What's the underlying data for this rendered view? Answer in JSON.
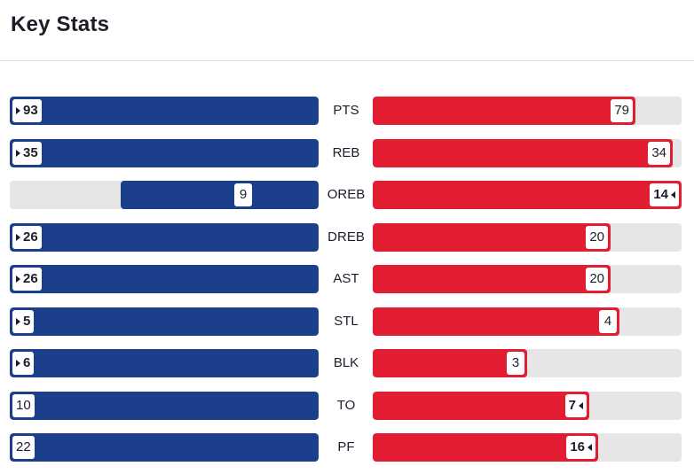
{
  "header": {
    "title": "Key Stats"
  },
  "colors": {
    "left_team": "#1c3f8c",
    "right_team": "#e21d31",
    "track": "#e6e6e6"
  },
  "stats": [
    {
      "label": "PTS",
      "left": {
        "value": "93",
        "fill": 1.0,
        "winner": true
      },
      "right": {
        "value": "79",
        "fill": 0.85,
        "winner": false
      }
    },
    {
      "label": "REB",
      "left": {
        "value": "35",
        "fill": 1.0,
        "winner": true
      },
      "right": {
        "value": "34",
        "fill": 0.97,
        "winner": false
      }
    },
    {
      "label": "OREB",
      "left": {
        "value": "9",
        "fill": 0.64,
        "winner": false
      },
      "right": {
        "value": "14",
        "fill": 1.0,
        "winner": true
      }
    },
    {
      "label": "DREB",
      "left": {
        "value": "26",
        "fill": 1.0,
        "winner": true
      },
      "right": {
        "value": "20",
        "fill": 0.77,
        "winner": false
      }
    },
    {
      "label": "AST",
      "left": {
        "value": "26",
        "fill": 1.0,
        "winner": true
      },
      "right": {
        "value": "20",
        "fill": 0.77,
        "winner": false
      }
    },
    {
      "label": "STL",
      "left": {
        "value": "5",
        "fill": 1.0,
        "winner": true
      },
      "right": {
        "value": "4",
        "fill": 0.8,
        "winner": false
      }
    },
    {
      "label": "BLK",
      "left": {
        "value": "6",
        "fill": 1.0,
        "winner": true
      },
      "right": {
        "value": "3",
        "fill": 0.5,
        "winner": false
      }
    },
    {
      "label": "TO",
      "left": {
        "value": "10",
        "fill": 1.0,
        "winner": false
      },
      "right": {
        "value": "7",
        "fill": 0.7,
        "winner": true
      }
    },
    {
      "label": "PF",
      "left": {
        "value": "22",
        "fill": 1.0,
        "winner": false
      },
      "right": {
        "value": "16",
        "fill": 0.73,
        "winner": true
      }
    }
  ]
}
